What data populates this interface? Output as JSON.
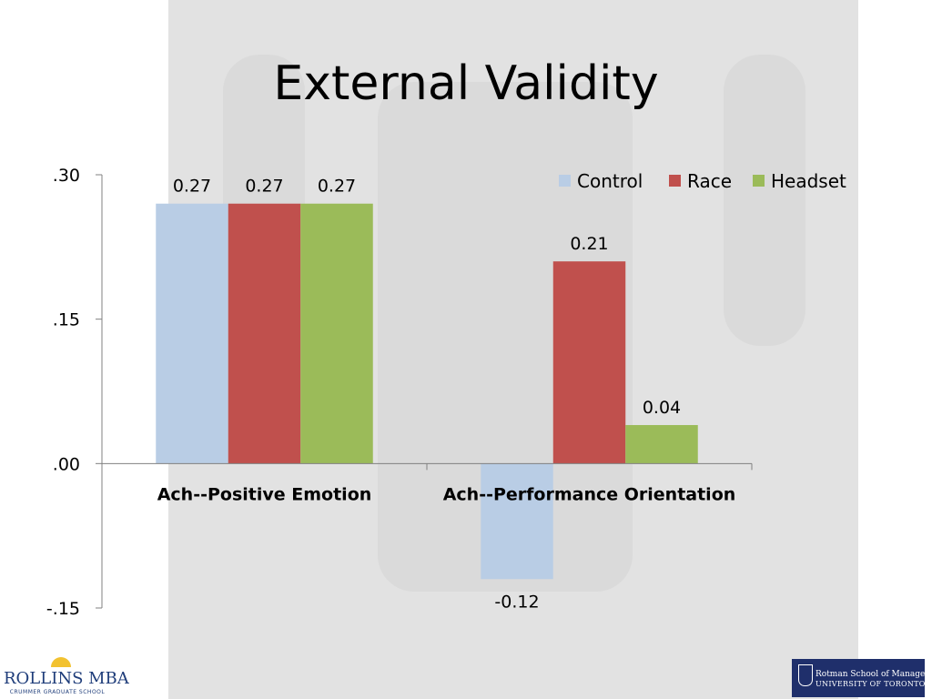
{
  "slide": {
    "title": "External Validity"
  },
  "chart_data": {
    "type": "bar",
    "categories": [
      "Ach--Positive Emotion",
      "Ach--Performance Orientation"
    ],
    "series": [
      {
        "name": "Control",
        "values": [
          0.27,
          -0.12
        ],
        "labels": [
          "0.27",
          "-0.12"
        ],
        "color": "#b9cde5"
      },
      {
        "name": "Race",
        "values": [
          0.27,
          0.21
        ],
        "labels": [
          "0.27",
          "0.21"
        ],
        "color": "#c0504d"
      },
      {
        "name": "Headset",
        "values": [
          0.27,
          0.04
        ],
        "labels": [
          "0.27",
          "0.04"
        ],
        "color": "#9bbb59"
      }
    ],
    "yticks": [
      0.3,
      0.15,
      0.0,
      -0.15
    ],
    "ytick_labels": [
      ".30",
      ".15",
      ".00",
      "-.15"
    ],
    "ylim": [
      -0.15,
      0.3
    ],
    "legend_position": "top-right",
    "grid": false
  },
  "logos": {
    "left_main": "ROLLINS MBA",
    "left_sub": "CRUMMER GRADUATE SCHOOL",
    "right_line1": "Rotman School of Management",
    "right_line2": "UNIVERSITY OF TORONTO"
  }
}
